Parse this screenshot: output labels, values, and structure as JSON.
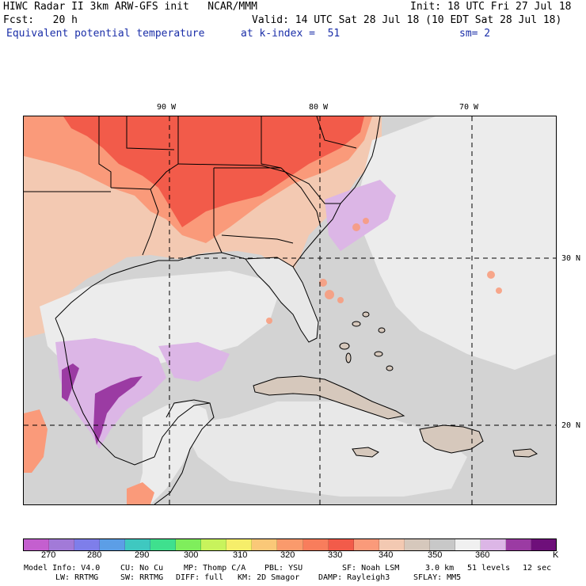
{
  "header": {
    "title_line1": "HIWC Radar II 3km ARW-GFS init   NCAR/MMM",
    "init": "Init: 18 UTC Fri 27 Jul 18",
    "fcst": "Fcst:   20 h",
    "valid": "Valid: 14 UTC Sat 28 Jul 18 (10 EDT Sat 28 Jul 18)",
    "field": "Equivalent potential temperature",
    "kindex": "at k-index =  51",
    "smoothing": "sm= 2"
  },
  "map": {
    "lon_labels": [
      "90 W",
      "80 W",
      "70 W"
    ],
    "lat_labels": [
      "30 N",
      "20 N"
    ],
    "grid_style": "dashed",
    "colors": {
      "land_hot": "#f25b4a",
      "land_warm": "#fa9a7a",
      "land_mild": "#f3c9b2",
      "land_tan": "#d6c8bc",
      "ocean_gray": "#d3d3d3",
      "ocean_white": "#f0f0f0",
      "purple_light": "#dcb6e6",
      "purple_dark": "#9b3ba3",
      "coast": "#000000"
    }
  },
  "colorbar": {
    "unit": "K",
    "labels": [
      "270",
      "280",
      "290",
      "300",
      "310",
      "320",
      "330",
      "340",
      "350",
      "360"
    ],
    "colors": [
      "#c45fcf",
      "#a27ad8",
      "#7e7eea",
      "#5c9ee6",
      "#3fc8c0",
      "#3fe08e",
      "#7fee5c",
      "#c8f35c",
      "#f6ee6a",
      "#fac878",
      "#fa9a6c",
      "#f87d5c",
      "#f25b4a",
      "#fa9a7a",
      "#f3c9b2",
      "#d6c8bc",
      "#c8c8c8",
      "#f0f0f0",
      "#dcb6e6",
      "#9b3ba3",
      "#6e0f7a"
    ]
  },
  "footer": {
    "line1_a": "Model Info: V4.0",
    "line1_b": "CU: No Cu",
    "line1_c": "MP: Thomp C/A",
    "line1_d": "PBL: YSU",
    "line1_e": "SF: Noah LSM",
    "line1_f": "3.0 km",
    "line1_g": "51 levels",
    "line1_h": "12 sec",
    "line2_a": "LW: RRTMG",
    "line2_b": "SW: RRTMG",
    "line2_c": "DIFF: full",
    "line2_d": "KM: 2D Smagor",
    "line2_e": "DAMP: Rayleigh3",
    "line2_f": "SFLAY: MM5"
  }
}
